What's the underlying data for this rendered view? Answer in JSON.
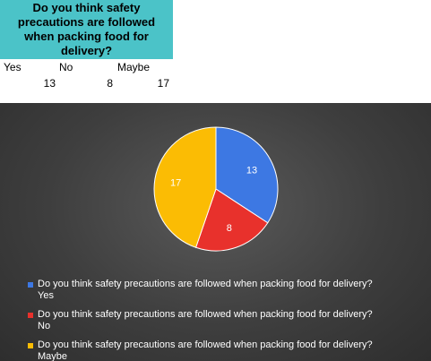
{
  "sheet": {
    "question": "Do you think safety precautions are followed when packing food for delivery?",
    "columns": [
      {
        "label": "Yes",
        "value": "13"
      },
      {
        "label": "No",
        "value": "8"
      },
      {
        "label": "Maybe",
        "value": "17"
      }
    ]
  },
  "chart_data": {
    "type": "pie",
    "title": "",
    "categories": [
      "Yes",
      "No",
      "Maybe"
    ],
    "values": [
      13,
      8,
      17
    ],
    "colors": [
      "#3d78e3",
      "#e8312c",
      "#fbbc04"
    ],
    "legend": {
      "placement": "bottom",
      "entries": [
        {
          "series": "Do you think safety precautions are followed when packing food for delivery?",
          "category": "Yes"
        },
        {
          "series": "Do you think safety precautions are followed when packing food for delivery?",
          "category": "No"
        },
        {
          "series": "Do you think safety precautions are followed when packing food for delivery?",
          "category": "Maybe"
        }
      ]
    },
    "background": "#3e3e3e"
  }
}
